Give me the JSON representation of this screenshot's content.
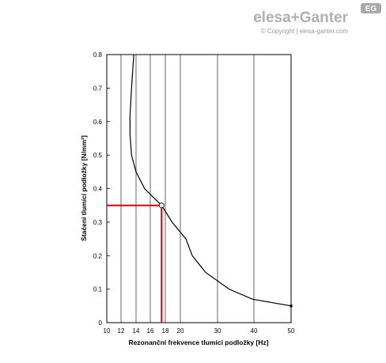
{
  "header": {
    "brand": "elesa+Ganter",
    "copyright": "© Copyright | elesa-ganter.com",
    "badge": "EG"
  },
  "chart_data": {
    "type": "line",
    "xlabel": "Rezonanční frekvence tlumící podložky [Hz]",
    "ylabel": "Stačení tlumící podložky [N/mm²]",
    "x": [
      13.7,
      13.4,
      13.2,
      13.2,
      13.4,
      14,
      15.2,
      17.5,
      18.9,
      21.5,
      23.2,
      26.8,
      33.2,
      39.6,
      50
    ],
    "series": [
      {
        "color": "#000000",
        "values": [
          0.8,
          0.7,
          0.62,
          0.56,
          0.5,
          0.45,
          0.4,
          0.35,
          0.3,
          0.25,
          0.2,
          0.15,
          0.1,
          0.07,
          0.05
        ]
      }
    ],
    "xlim": [
      10,
      50
    ],
    "ylim": [
      0,
      0.8
    ],
    "xticks": [
      10,
      12,
      14,
      16,
      18,
      20,
      30,
      40,
      50
    ],
    "yticks": [
      0,
      0.1,
      0.2,
      0.3,
      0.4,
      0.5,
      0.6,
      0.7,
      0.8
    ],
    "grid": "x",
    "highlight": {
      "x": 17.5,
      "y": 0.35,
      "color": "#e00000"
    }
  }
}
